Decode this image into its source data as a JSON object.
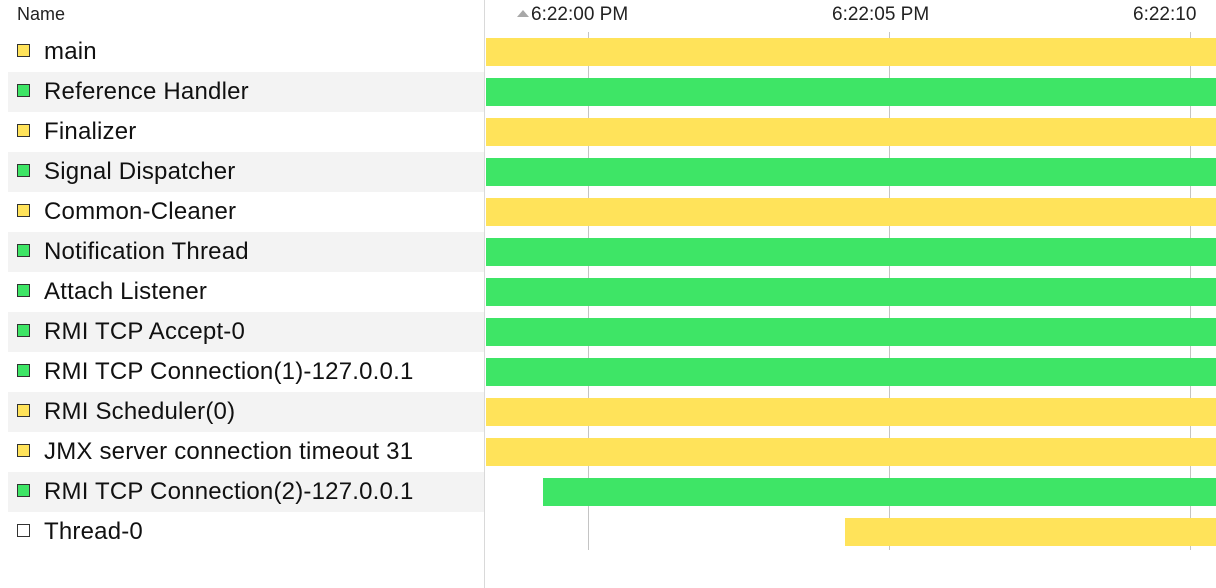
{
  "header": {
    "name_column": "Name",
    "time_ticks": [
      {
        "label": "6:22:00 PM"
      },
      {
        "label": "6:22:05 PM"
      },
      {
        "label": "6:22:10"
      }
    ],
    "sort_indicator": "sort-ascending-icon"
  },
  "colors": {
    "running": "#3ee566",
    "waiting": "#ffe35a",
    "none": "#ffffff"
  },
  "timeline": {
    "span_start_s": -1.7,
    "span_end_s": 10.5,
    "tick_seconds": [
      0,
      5,
      10
    ]
  },
  "threads": [
    {
      "name": "main",
      "state": "waiting",
      "start_s": -1.7,
      "end_s": 10.5
    },
    {
      "name": "Reference Handler",
      "state": "running",
      "start_s": -1.7,
      "end_s": 10.5
    },
    {
      "name": "Finalizer",
      "state": "waiting",
      "start_s": -1.7,
      "end_s": 10.5
    },
    {
      "name": "Signal Dispatcher",
      "state": "running",
      "start_s": -1.7,
      "end_s": 10.5
    },
    {
      "name": "Common-Cleaner",
      "state": "waiting",
      "start_s": -1.7,
      "end_s": 10.5
    },
    {
      "name": "Notification Thread",
      "state": "running",
      "start_s": -1.7,
      "end_s": 10.5
    },
    {
      "name": "Attach Listener",
      "state": "running",
      "start_s": -1.7,
      "end_s": 10.5
    },
    {
      "name": "RMI TCP Accept-0",
      "state": "running",
      "start_s": -1.7,
      "end_s": 10.5
    },
    {
      "name": "RMI TCP Connection(1)-127.0.0.1",
      "state": "running",
      "start_s": -1.7,
      "end_s": 10.5
    },
    {
      "name": "RMI Scheduler(0)",
      "state": "waiting",
      "start_s": -1.7,
      "end_s": 10.5
    },
    {
      "name": "JMX server connection timeout 31",
      "state": "waiting",
      "start_s": -1.7,
      "end_s": 10.5
    },
    {
      "name": "RMI TCP Connection(2)-127.0.0.1",
      "state": "running",
      "start_s": -0.75,
      "end_s": 10.5
    },
    {
      "name": "Thread-0",
      "state": "none",
      "bar_state": "waiting",
      "start_s": 4.3,
      "end_s": 10.5
    }
  ]
}
